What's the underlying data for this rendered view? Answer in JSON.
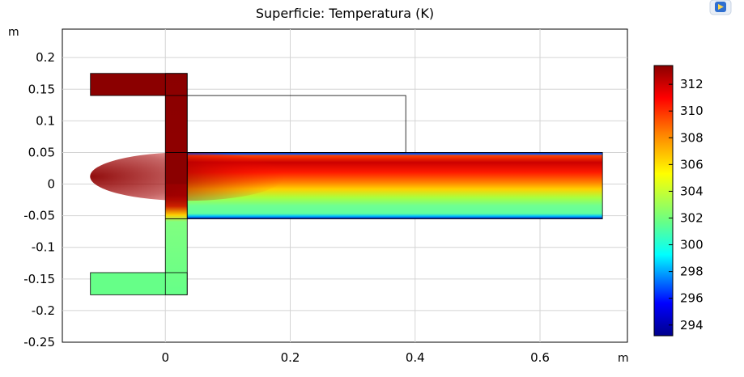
{
  "window": {
    "corner_button_icon": "camera-box-icon"
  },
  "chart_data": {
    "type": "heatmap",
    "title": "Superficie: Temperatura (K)",
    "xlabel": "m",
    "ylabel": "m",
    "xlim": [
      -0.165,
      0.74
    ],
    "ylim": [
      -0.25,
      0.245
    ],
    "x_ticks": [
      0,
      0.2,
      0.4,
      0.6
    ],
    "y_ticks": [
      0.2,
      0.15,
      0.1,
      0.05,
      0,
      -0.05,
      -0.1,
      -0.15,
      -0.2,
      -0.25
    ],
    "grid": true,
    "colorbar": {
      "label": "Temperatura (K)",
      "min": 293.2,
      "max": 313.4,
      "ticks": [
        312,
        310,
        308,
        306,
        304,
        302,
        300,
        298,
        296,
        294
      ],
      "colormap": "rainbow",
      "position": "right"
    },
    "regions": [
      {
        "name": "hot inlet arm",
        "x": [
          -0.12,
          0.035
        ],
        "y": [
          0.14,
          0.175
        ],
        "temperature": 313
      },
      {
        "name": "cold inlet arm",
        "x": [
          -0.12,
          0.035
        ],
        "y": [
          -0.175,
          -0.14
        ],
        "temperature": 302.5
      },
      {
        "name": "vertical riser",
        "x": [
          0,
          0.035
        ],
        "y": [
          -0.175,
          0.175
        ],
        "temperature_top": 313,
        "temperature_bottom": 302.5
      },
      {
        "name": "mixing channel",
        "x": [
          0.035,
          0.7
        ],
        "y": [
          -0.055,
          0.05
        ],
        "temperature_hot_core": 311,
        "temperature_cold_side": 302.5,
        "temperature_walls": 294
      }
    ],
    "outline_box": {
      "x": [
        0.035,
        0.385
      ],
      "y": [
        0.05,
        0.14
      ]
    },
    "colors": {
      "c294": "#00008b",
      "c298": "#0000ff",
      "c300": "#00ffff",
      "c302": "#66ff88",
      "c306": "#ffff00",
      "c309": "#ff8000",
      "c311": "#ff0000",
      "c313": "#8b0000"
    }
  }
}
